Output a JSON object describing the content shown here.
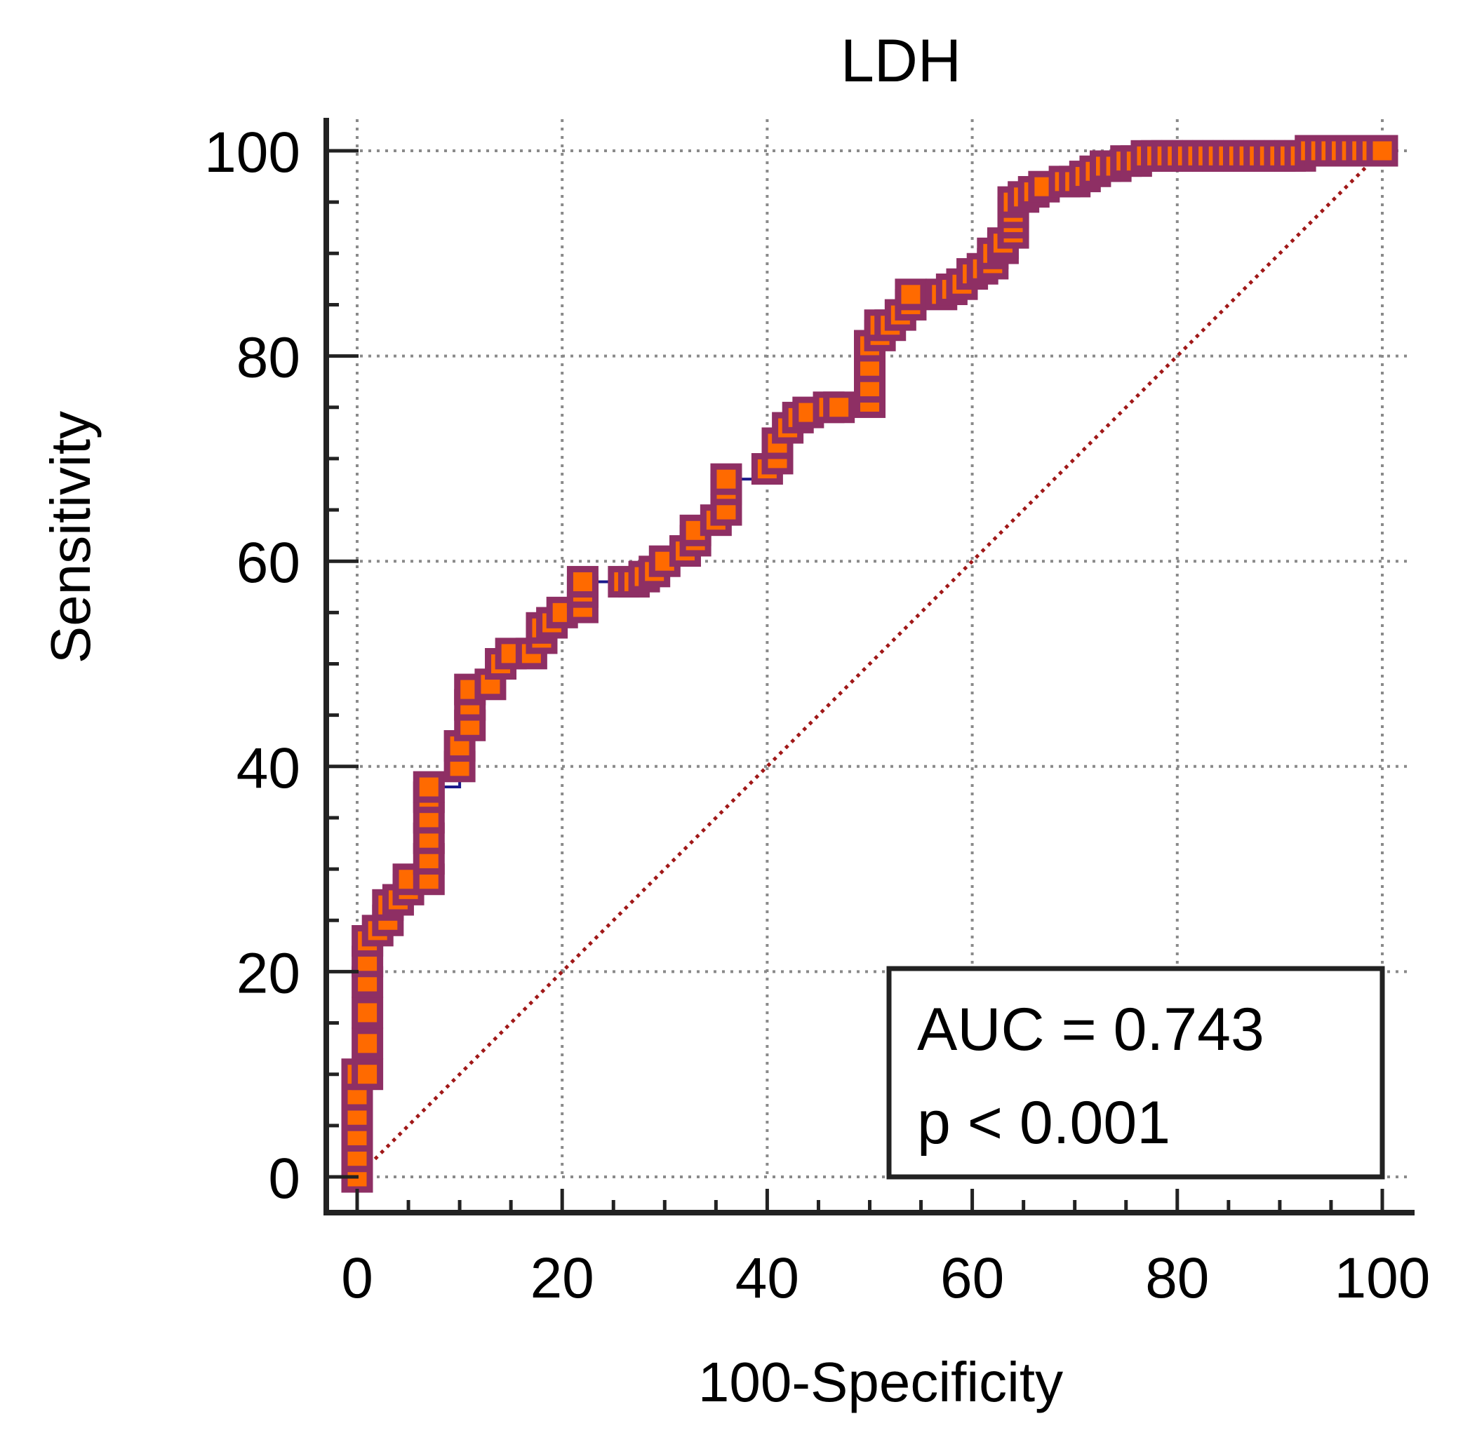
{
  "chart_data": {
    "type": "line",
    "title": "LDH",
    "xlabel": "100-Specificity",
    "ylabel": "Sensitivity",
    "xlim": [
      0,
      100
    ],
    "ylim": [
      0,
      100
    ],
    "xticks": [
      0,
      20,
      40,
      60,
      80,
      100
    ],
    "yticks": [
      0,
      20,
      40,
      60,
      80,
      100
    ],
    "grid": true,
    "series": [
      {
        "name": "ROC curve",
        "x": [
          0,
          0,
          0,
          0,
          0,
          0,
          1,
          1,
          1,
          1,
          1,
          1,
          2,
          3,
          3,
          4,
          5,
          5,
          7,
          7,
          7,
          7,
          7,
          7,
          10,
          10,
          11,
          11,
          11,
          13,
          14,
          15,
          17,
          18,
          18,
          19,
          20,
          22,
          22,
          22,
          26,
          27,
          28,
          29,
          30,
          32,
          33,
          33,
          35,
          36,
          36,
          36,
          40,
          41,
          41,
          42,
          43,
          44,
          46,
          47,
          50,
          50,
          50,
          50,
          51,
          51,
          52,
          53,
          54,
          54,
          57,
          58,
          59,
          60,
          61,
          62,
          62,
          63,
          63,
          64,
          64,
          64,
          64,
          65,
          66,
          67,
          69,
          70,
          71,
          72,
          73,
          74,
          75,
          76,
          77,
          78,
          79,
          80,
          81,
          82,
          83,
          84,
          85,
          86,
          87,
          88,
          89,
          90,
          91,
          92,
          93,
          94,
          95,
          96,
          97,
          98,
          99,
          100
        ],
        "y": [
          0,
          2,
          4,
          6,
          8,
          10,
          10,
          13,
          16,
          19,
          21,
          23,
          24,
          25,
          26.5,
          27,
          28,
          29,
          29,
          31,
          33,
          35,
          37,
          38,
          40,
          42,
          44,
          46,
          47.5,
          48,
          50,
          51,
          51,
          52.5,
          53.5,
          54,
          55,
          55.5,
          57,
          58,
          58,
          58,
          58.5,
          59,
          60,
          61,
          62,
          63,
          64,
          65,
          67,
          68,
          69,
          70,
          71.5,
          73,
          74,
          74.5,
          75,
          75,
          75.5,
          77,
          79,
          81,
          82,
          83,
          83,
          84,
          85,
          86,
          86,
          86.5,
          87,
          88,
          88.5,
          89,
          90,
          90.5,
          91,
          92,
          93,
          94,
          95,
          95.5,
          96,
          96.5,
          97,
          97,
          97.5,
          98,
          98.5,
          98.5,
          99,
          99,
          99.5,
          99.5,
          99.5,
          99.5,
          99.5,
          99.5,
          99.5,
          99.5,
          99.5,
          99.5,
          99.5,
          99.5,
          99.5,
          99.5,
          99.5,
          99.5,
          100,
          100,
          100,
          100,
          100,
          100,
          100,
          100
        ]
      },
      {
        "name": "Reference line",
        "x": [
          0,
          100
        ],
        "y": [
          0,
          100
        ]
      }
    ],
    "annotations": [
      "AUC = 0.743",
      "p < 0.001"
    ]
  }
}
